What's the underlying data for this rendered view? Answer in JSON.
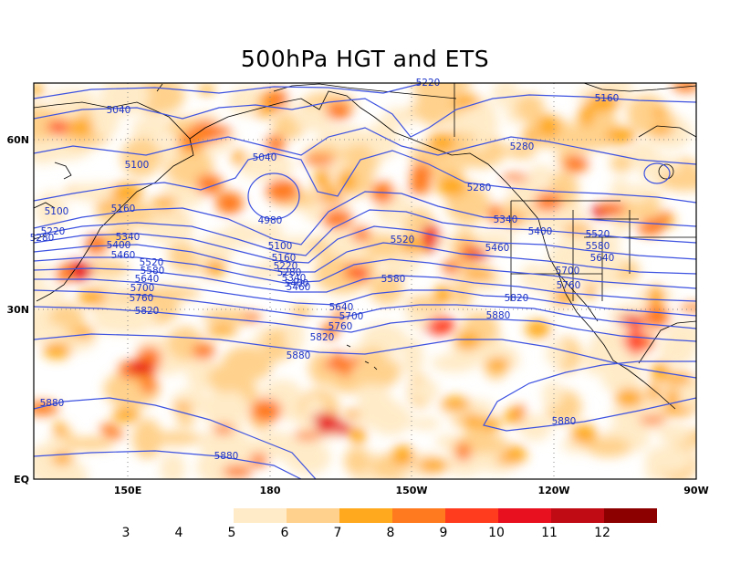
{
  "title": "500hPa HGT and ETS",
  "map": {
    "lat_labels": [
      {
        "id": "60n",
        "text": "60N"
      },
      {
        "id": "30n",
        "text": "30N"
      },
      {
        "id": "eq",
        "text": "EQ"
      }
    ],
    "lon_labels": [
      {
        "id": "150e",
        "text": "150E"
      },
      {
        "id": "180",
        "text": "180"
      },
      {
        "id": "150w",
        "text": "150W"
      },
      {
        "id": "120w",
        "text": "120W"
      },
      {
        "id": "90w",
        "text": "90W"
      }
    ],
    "contour_labels": [
      "5040",
      "5100",
      "5160",
      "5220",
      "5280",
      "5340",
      "5400",
      "5460",
      "5520",
      "5580",
      "5640",
      "5700",
      "5760",
      "5820",
      "5880",
      "4980"
    ]
  },
  "colorbar": {
    "labels": [
      "3",
      "4",
      "5",
      "6",
      "7",
      "8",
      "9",
      "10",
      "11",
      "12"
    ],
    "colors": [
      "#ffebc8",
      "#ffd18c",
      "#ffaa1e",
      "#ff7a1e",
      "#ff3d1e",
      "#e8101e",
      "#c00a14",
      "#8c0000"
    ]
  }
}
